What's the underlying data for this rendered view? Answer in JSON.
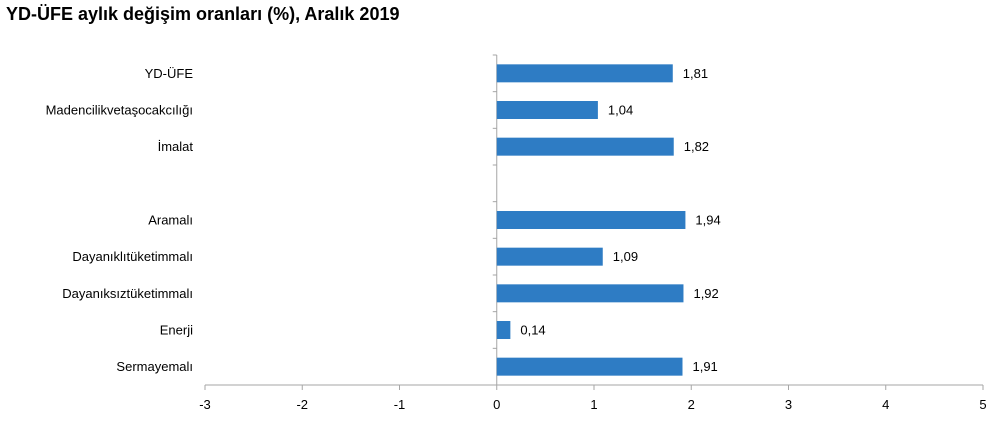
{
  "chart_data": {
    "type": "bar",
    "orientation": "horizontal",
    "title": "YD-ÜFE aylık değişim oranları (%), Aralık 2019",
    "xlabel": "",
    "ylabel": "",
    "xlim": [
      -3,
      5
    ],
    "x_ticks": [
      "-3",
      "-2",
      "-1",
      "0",
      "1",
      "2",
      "3",
      "4",
      "5"
    ],
    "categories": [
      "YD-ÜFE",
      "Madencilikvetaşocakcılığı",
      "İmalat",
      "",
      "Aramalı",
      "Dayanıklıtüketimmalı",
      "Dayanıksıztüketimmalı",
      "Enerji",
      "Sermayemalı"
    ],
    "values": [
      1.81,
      1.04,
      1.82,
      null,
      1.94,
      1.09,
      1.92,
      0.14,
      1.91
    ],
    "value_labels": [
      "1,81",
      "1,04",
      "1,82",
      "",
      "1,94",
      "1,09",
      "1,92",
      "0,14",
      "1,91"
    ],
    "bar_color": "#2e7cc4",
    "grid": false,
    "legend": "none"
  }
}
